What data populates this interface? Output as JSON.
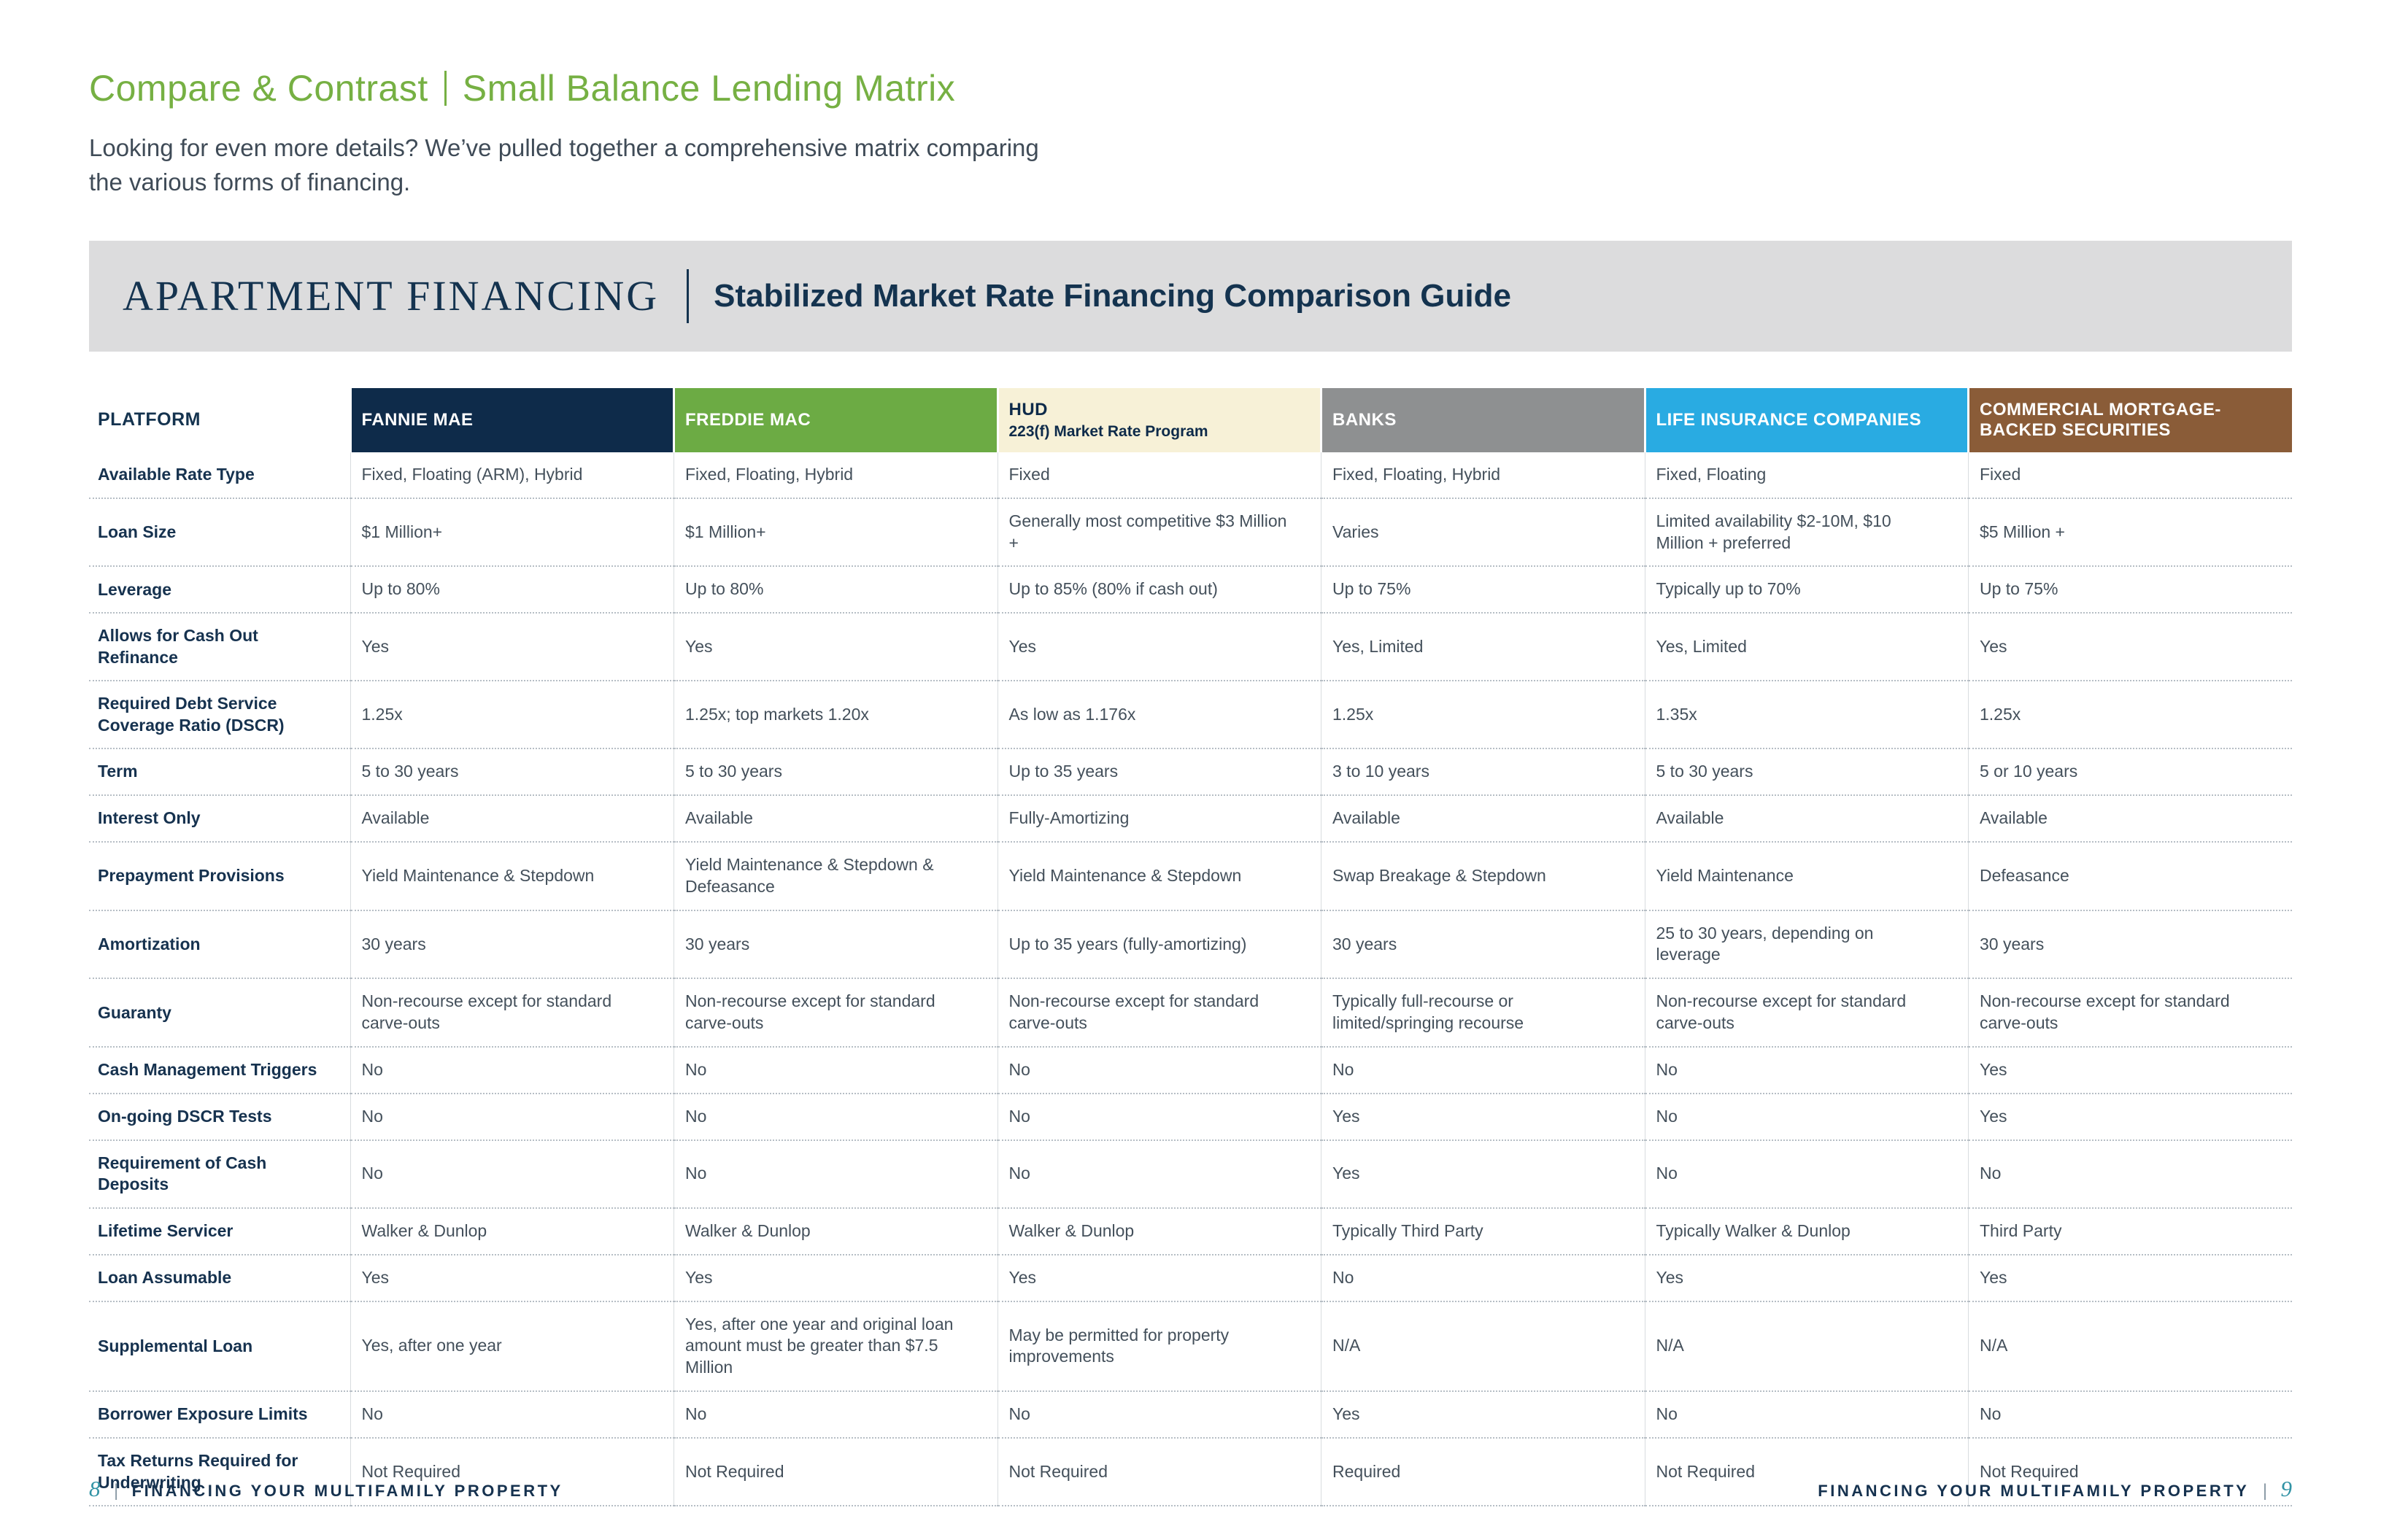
{
  "header": {
    "title_left": "Compare & Contrast",
    "title_right": "Small Balance Lending Matrix",
    "intro_line1": "Looking for even more details? We’ve pulled together a comprehensive matrix comparing",
    "intro_line2": "the various forms of financing."
  },
  "banner": {
    "brand": "APARTMENT FINANCING",
    "caption": "Stabilized Market Rate Financing Comparison Guide"
  },
  "colors": {
    "title_green": "#76b043",
    "navy": "#14334f",
    "banner_gray": "#dcdcdd",
    "page_number_teal": "#3193a5"
  },
  "table": {
    "platform_header": "PLATFORM",
    "columns": [
      {
        "label": "FANNIE MAE",
        "bg": "#0e2b4a",
        "color": "#ffffff"
      },
      {
        "label": "FREDDIE MAC",
        "bg": "#6cab44",
        "color": "#ffffff"
      },
      {
        "label": "HUD",
        "sublabel": "223(f) Market Rate Program",
        "bg": "#f7f1d7",
        "color": "#0e2b4a"
      },
      {
        "label": "BANKS",
        "bg": "#8e9091",
        "color": "#ffffff"
      },
      {
        "label": "LIFE INSURANCE COMPANIES",
        "bg": "#29abe2",
        "color": "#ffffff"
      },
      {
        "label": "COMMERCIAL MORTGAGE-BACKED SECURITIES",
        "bg": "#8a5c38",
        "color": "#ffffff"
      }
    ],
    "rows": [
      {
        "label": "Available Rate Type",
        "cells": [
          "Fixed, Floating (ARM), Hybrid",
          "Fixed, Floating, Hybrid",
          "Fixed",
          "Fixed, Floating, Hybrid",
          "Fixed, Floating",
          "Fixed"
        ]
      },
      {
        "label": "Loan Size",
        "cells": [
          "$1 Million+",
          "$1 Million+",
          "Generally most competitive $3 Million +",
          "Varies",
          "Limited availability $2-10M, $10 Million + preferred",
          "$5 Million +"
        ]
      },
      {
        "label": "Leverage",
        "cells": [
          "Up to 80%",
          "Up to 80%",
          "Up to 85% (80% if cash out)",
          "Up to 75%",
          "Typically up to 70%",
          "Up to 75%"
        ]
      },
      {
        "label": "Allows for Cash Out Refinance",
        "cells": [
          "Yes",
          "Yes",
          "Yes",
          "Yes, Limited",
          "Yes, Limited",
          "Yes"
        ]
      },
      {
        "label": "Required Debt Service Coverage Ratio (DSCR)",
        "cells": [
          "1.25x",
          "1.25x; top markets 1.20x",
          "As low as 1.176x",
          "1.25x",
          "1.35x",
          "1.25x"
        ]
      },
      {
        "label": "Term",
        "cells": [
          "5 to 30 years",
          "5 to 30 years",
          "Up to 35 years",
          "3 to 10 years",
          "5 to 30 years",
          "5 or 10 years"
        ]
      },
      {
        "label": "Interest Only",
        "cells": [
          "Available",
          "Available",
          "Fully-Amortizing",
          "Available",
          "Available",
          "Available"
        ]
      },
      {
        "label": "Prepayment Provisions",
        "cells": [
          "Yield Maintenance & Stepdown",
          "Yield Maintenance & Stepdown & Defeasance",
          "Yield Maintenance & Stepdown",
          "Swap Breakage & Stepdown",
          "Yield Maintenance",
          "Defeasance"
        ]
      },
      {
        "label": "Amortization",
        "cells": [
          "30 years",
          "30 years",
          "Up to 35 years (fully-amortizing)",
          "30 years",
          "25 to 30 years, depending on leverage",
          "30 years"
        ]
      },
      {
        "label": "Guaranty",
        "cells": [
          "Non-recourse except for standard carve-outs",
          "Non-recourse except for standard carve-outs",
          "Non-recourse except for standard carve-outs",
          "Typically full-recourse or limited/springing recourse",
          "Non-recourse except for standard carve-outs",
          "Non-recourse except for standard carve-outs"
        ]
      },
      {
        "label": "Cash Management Triggers",
        "cells": [
          "No",
          "No",
          "No",
          "No",
          "No",
          "Yes"
        ]
      },
      {
        "label": "On-going DSCR Tests",
        "cells": [
          "No",
          "No",
          "No",
          "Yes",
          "No",
          "Yes"
        ]
      },
      {
        "label": "Requirement of Cash Deposits",
        "cells": [
          "No",
          "No",
          "No",
          "Yes",
          "No",
          "No"
        ]
      },
      {
        "label": "Lifetime Servicer",
        "cells": [
          "Walker & Dunlop",
          "Walker & Dunlop",
          "Walker & Dunlop",
          "Typically Third Party",
          "Typically Walker & Dunlop",
          "Third Party"
        ]
      },
      {
        "label": "Loan Assumable",
        "cells": [
          "Yes",
          "Yes",
          "Yes",
          "No",
          "Yes",
          "Yes"
        ]
      },
      {
        "label": "Supplemental Loan",
        "cells": [
          "Yes, after one year",
          "Yes, after one year and original loan amount must be greater than $7.5 Million",
          "May be permitted for property improvements",
          "N/A",
          "N/A",
          "N/A"
        ]
      },
      {
        "label": "Borrower Exposure Limits",
        "cells": [
          "No",
          "No",
          "No",
          "Yes",
          "No",
          "No"
        ]
      },
      {
        "label": "Tax Returns Required for Underwriting",
        "cells": [
          "Not Required",
          "Not Required",
          "Not Required",
          "Required",
          "Not Required",
          "Not Required"
        ]
      }
    ]
  },
  "footer": {
    "left_page": "8",
    "left_text": "FINANCING YOUR MULTIFAMILY PROPERTY",
    "right_text": "FINANCING YOUR MULTIFAMILY PROPERTY",
    "right_page": "9"
  }
}
